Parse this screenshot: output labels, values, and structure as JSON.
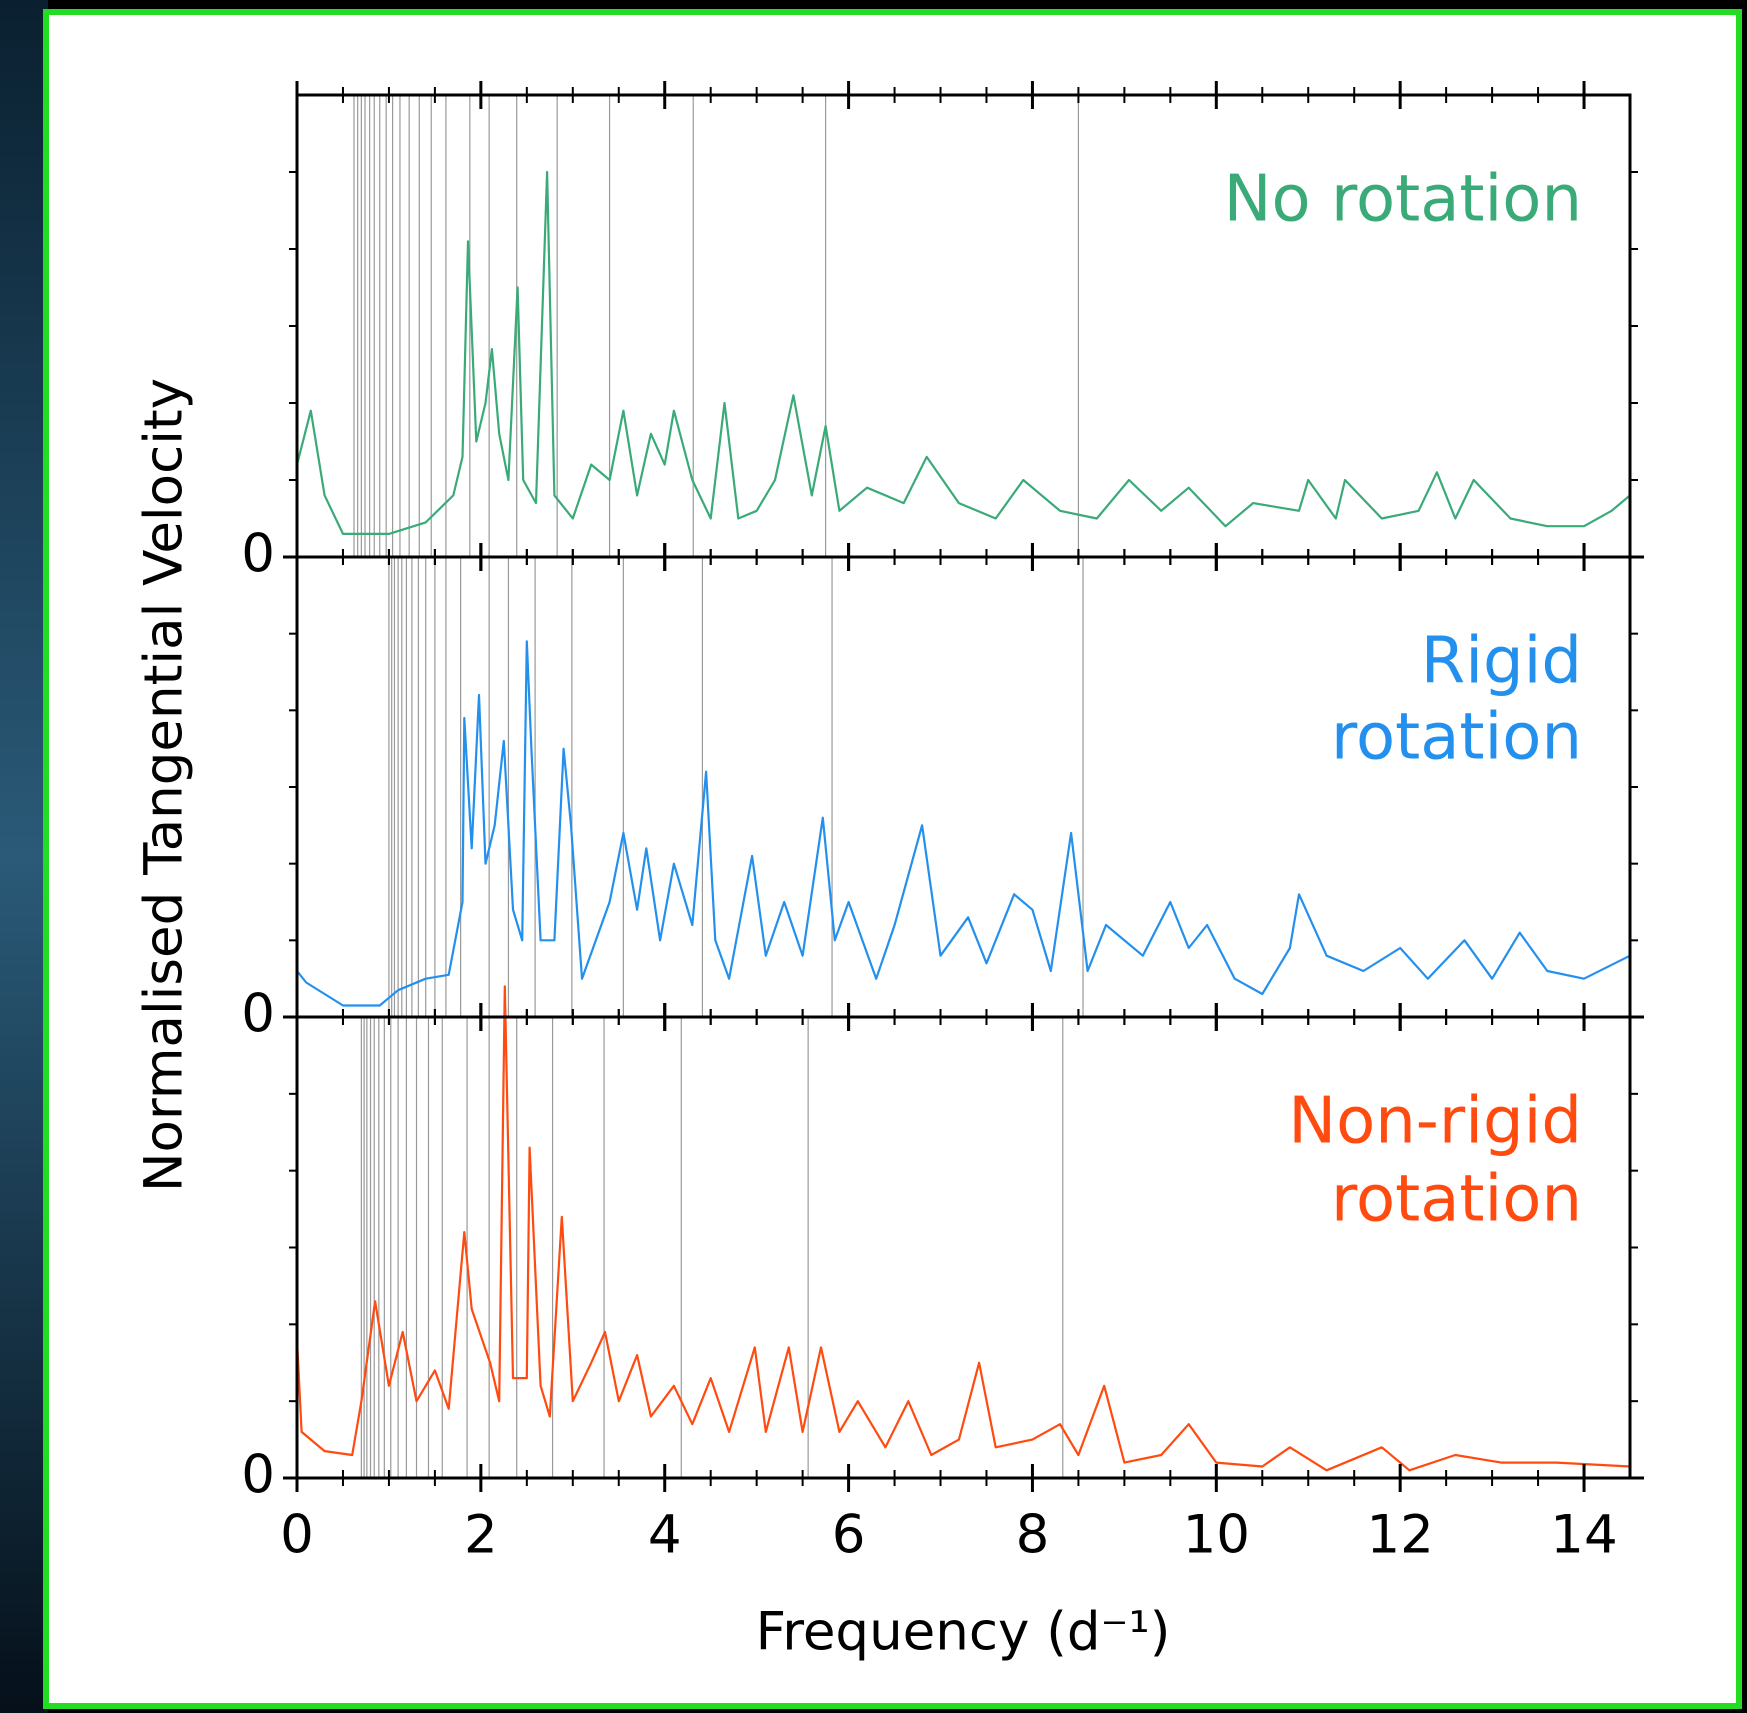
{
  "chart_data": [
    {
      "type": "line",
      "title": [
        "No rotation"
      ],
      "title_color": "#3aaa78",
      "xlim": [
        0,
        14.5
      ],
      "ylim": [
        0,
        6
      ],
      "yticks": [
        0
      ],
      "yminorticks": [
        1,
        2,
        3,
        4,
        5
      ],
      "mode_lines": [
        0.62,
        0.66,
        0.7,
        0.74,
        0.79,
        0.84,
        0.9,
        0.97,
        1.04,
        1.12,
        1.22,
        1.33,
        1.46,
        1.62,
        1.88,
        2.09,
        2.39,
        2.83,
        3.4,
        4.31,
        5.75,
        8.5
      ],
      "series": [
        {
          "color": "#3aaa78",
          "x": [
            0,
            0.15,
            0.3,
            0.5,
            1.0,
            1.4,
            1.7,
            1.8,
            1.86,
            1.95,
            2.05,
            2.12,
            2.2,
            2.3,
            2.4,
            2.46,
            2.6,
            2.72,
            2.8,
            3.0,
            3.2,
            3.4,
            3.55,
            3.7,
            3.85,
            4.0,
            4.1,
            4.3,
            4.5,
            4.65,
            4.8,
            5.0,
            5.2,
            5.4,
            5.6,
            5.75,
            5.9,
            6.2,
            6.6,
            6.85,
            7.2,
            7.6,
            7.9,
            8.3,
            8.7,
            9.05,
            9.4,
            9.7,
            10.1,
            10.4,
            10.9,
            11.0,
            11.3,
            11.4,
            11.8,
            12.2,
            12.4,
            12.6,
            12.8,
            13.2,
            13.6,
            14.0,
            14.3,
            14.5
          ],
          "values": [
            1.2,
            1.9,
            0.8,
            0.3,
            0.3,
            0.45,
            0.8,
            1.3,
            4.1,
            1.5,
            2.0,
            2.7,
            1.6,
            1.0,
            3.5,
            1.0,
            0.7,
            5.0,
            0.8,
            0.5,
            1.2,
            1.0,
            1.9,
            0.8,
            1.6,
            1.2,
            1.9,
            1.0,
            0.5,
            2.0,
            0.5,
            0.6,
            1.0,
            2.1,
            0.8,
            1.7,
            0.6,
            0.9,
            0.7,
            1.3,
            0.7,
            0.5,
            1.0,
            0.6,
            0.5,
            1.0,
            0.6,
            0.9,
            0.4,
            0.7,
            0.6,
            1.0,
            0.5,
            1.0,
            0.5,
            0.6,
            1.1,
            0.5,
            1.0,
            0.5,
            0.4,
            0.4,
            0.6,
            0.8
          ]
        }
      ]
    },
    {
      "type": "line",
      "title": [
        "Rigid",
        "rotation"
      ],
      "title_color": "#2390ee",
      "ylabel": "Normalised Tangential Velocity",
      "xlim": [
        0,
        14.5
      ],
      "ylim": [
        0,
        6
      ],
      "yticks": [
        0
      ],
      "yminorticks": [
        1,
        2,
        3,
        4,
        5
      ],
      "mode_lines": [
        1.0,
        1.03,
        1.06,
        1.1,
        1.14,
        1.19,
        1.25,
        1.32,
        1.4,
        1.5,
        1.62,
        1.78,
        2.09,
        2.3,
        2.59,
        2.99,
        3.55,
        4.41,
        5.82,
        8.55
      ],
      "series": [
        {
          "color": "#2390ee",
          "x": [
            0,
            0.1,
            0.5,
            0.9,
            1.1,
            1.4,
            1.65,
            1.8,
            1.82,
            1.9,
            1.98,
            2.05,
            2.15,
            2.25,
            2.35,
            2.45,
            2.5,
            2.55,
            2.65,
            2.8,
            2.9,
            2.98,
            3.1,
            3.4,
            3.55,
            3.7,
            3.8,
            3.95,
            4.1,
            4.3,
            4.45,
            4.55,
            4.7,
            4.95,
            5.1,
            5.3,
            5.5,
            5.72,
            5.85,
            6.0,
            6.3,
            6.5,
            6.8,
            7.0,
            7.3,
            7.5,
            7.8,
            8.0,
            8.2,
            8.42,
            8.6,
            8.8,
            9.2,
            9.5,
            9.7,
            9.9,
            10.2,
            10.5,
            10.8,
            10.9,
            11.2,
            11.6,
            12.0,
            12.3,
            12.7,
            13.0,
            13.3,
            13.6,
            14.0,
            14.5
          ],
          "values": [
            0.6,
            0.45,
            0.15,
            0.15,
            0.35,
            0.5,
            0.55,
            1.5,
            3.9,
            2.2,
            4.2,
            2.0,
            2.5,
            3.6,
            1.4,
            1.0,
            4.9,
            3.5,
            1.0,
            1.0,
            3.5,
            2.5,
            0.5,
            1.5,
            2.4,
            1.4,
            2.2,
            1.0,
            2.0,
            1.2,
            3.2,
            1.0,
            0.5,
            2.1,
            0.8,
            1.5,
            0.8,
            2.6,
            1.0,
            1.5,
            0.5,
            1.2,
            2.5,
            0.8,
            1.3,
            0.7,
            1.6,
            1.4,
            0.6,
            2.4,
            0.6,
            1.2,
            0.8,
            1.5,
            0.9,
            1.2,
            0.5,
            0.3,
            0.9,
            1.6,
            0.8,
            0.6,
            0.9,
            0.5,
            1.0,
            0.5,
            1.1,
            0.6,
            0.5,
            0.8
          ]
        }
      ]
    },
    {
      "type": "line",
      "title": [
        "Non-rigid",
        "rotation"
      ],
      "title_color": "#ff4a10",
      "xlabel": "Frequency (d⁻¹)",
      "xlim": [
        0,
        14.5
      ],
      "xticks": [
        0,
        2,
        4,
        6,
        8,
        10,
        12,
        14
      ],
      "xminorticks": [
        0.5,
        1,
        1.5,
        2.5,
        3,
        3.5,
        4.5,
        5,
        5.5,
        6.5,
        7,
        7.5,
        8.5,
        9,
        9.5,
        10.5,
        11,
        11.5,
        12.5,
        13,
        13.5
      ],
      "ylim": [
        0,
        6
      ],
      "yticks": [
        0
      ],
      "yminorticks": [
        1,
        2,
        3,
        4,
        5
      ],
      "mode_lines": [
        0.7,
        0.73,
        0.76,
        0.8,
        0.84,
        0.89,
        0.95,
        1.02,
        1.1,
        1.19,
        1.3,
        1.43,
        1.58,
        1.85,
        2.09,
        2.39,
        2.78,
        3.34,
        4.18,
        5.56,
        8.33
      ],
      "series": [
        {
          "color": "#ff4a10",
          "x": [
            0,
            0.05,
            0.3,
            0.6,
            0.7,
            0.85,
            1.0,
            1.15,
            1.3,
            1.5,
            1.65,
            1.82,
            1.9,
            2.1,
            2.2,
            2.26,
            2.35,
            2.5,
            2.53,
            2.65,
            2.75,
            2.88,
            3.0,
            3.2,
            3.35,
            3.5,
            3.7,
            3.85,
            4.1,
            4.3,
            4.5,
            4.7,
            4.98,
            5.1,
            5.35,
            5.5,
            5.7,
            5.9,
            6.1,
            6.4,
            6.65,
            6.9,
            7.2,
            7.42,
            7.6,
            8.0,
            8.3,
            8.5,
            8.78,
            9.0,
            9.4,
            9.7,
            10.0,
            10.5,
            10.8,
            11.2,
            11.8,
            12.1,
            12.6,
            13.1,
            13.7,
            14.5
          ],
          "values": [
            1.8,
            0.6,
            0.35,
            0.3,
            1.0,
            2.3,
            1.2,
            1.9,
            1.0,
            1.4,
            0.9,
            3.2,
            2.2,
            1.5,
            1.0,
            6.4,
            1.3,
            1.3,
            4.3,
            1.2,
            0.8,
            3.4,
            1.0,
            1.5,
            1.9,
            1.0,
            1.6,
            0.8,
            1.2,
            0.7,
            1.3,
            0.6,
            1.7,
            0.6,
            1.7,
            0.6,
            1.7,
            0.6,
            1.0,
            0.4,
            1.0,
            0.3,
            0.5,
            1.5,
            0.4,
            0.5,
            0.7,
            0.3,
            1.2,
            0.2,
            0.3,
            0.7,
            0.2,
            0.15,
            0.4,
            0.1,
            0.4,
            0.1,
            0.3,
            0.2,
            0.2,
            0.15
          ]
        }
      ]
    }
  ]
}
